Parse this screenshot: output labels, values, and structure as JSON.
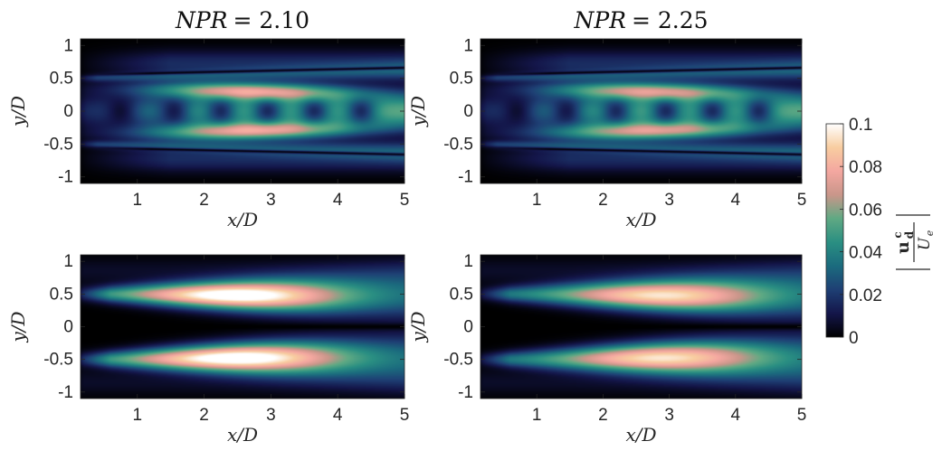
{
  "figure": {
    "colormap": [
      "#000000",
      "#14164a",
      "#1e3f74",
      "#1b6b7e",
      "#2a8f82",
      "#5fa983",
      "#c9968a",
      "#f4a7a0",
      "#f8cda0",
      "#ffffff"
    ]
  },
  "colorbar": {
    "min": 0,
    "max": 0.1,
    "ticks": [
      "0.1",
      "0.08",
      "0.06",
      "0.04",
      "0.02",
      "0"
    ],
    "label": "|u_d^c / U_e|"
  },
  "chart_data": [
    {
      "type": "heatmap",
      "title": "NPR = 2.10",
      "title_prefix": "NPR",
      "title_value": "= 2.10",
      "xlabel": "x/D",
      "ylabel": "y/D",
      "xlim": [
        0.15,
        5
      ],
      "ylim": [
        -1.1,
        1.1
      ],
      "xticks": [
        "1",
        "2",
        "3",
        "4",
        "5"
      ],
      "yticks": [
        "1",
        "0.5",
        "0",
        "-0.5",
        "-1"
      ],
      "field": {
        "kind": "shock-cell",
        "peak": 0.07,
        "cells_x": [
          0.75,
          1.55,
          2.25,
          2.95,
          3.65,
          4.35
        ]
      }
    },
    {
      "type": "heatmap",
      "title": "NPR = 2.25",
      "title_prefix": "NPR",
      "title_value": "= 2.25",
      "xlabel": "x/D",
      "ylabel": "y/D",
      "xlim": [
        0.15,
        5
      ],
      "ylim": [
        -1.1,
        1.1
      ],
      "xticks": [
        "1",
        "2",
        "3",
        "4",
        "5"
      ],
      "yticks": [
        "1",
        "0.5",
        "0",
        "-0.5",
        "-1"
      ],
      "field": {
        "kind": "shock-cell",
        "peak": 0.065,
        "cells_x": [
          0.7,
          1.45,
          2.2,
          2.95,
          3.65,
          4.35
        ]
      }
    },
    {
      "type": "heatmap",
      "title": "",
      "xlabel": "x/D",
      "ylabel": "y/D",
      "xlim": [
        0.15,
        5
      ],
      "ylim": [
        -1.1,
        1.1
      ],
      "xticks": [
        "1",
        "2",
        "3",
        "4",
        "5"
      ],
      "yticks": [
        "1",
        "0.5",
        "0",
        "-0.5",
        "-1"
      ],
      "field": {
        "kind": "shear-layer",
        "peak": 0.08,
        "peak_x": 2.5
      }
    },
    {
      "type": "heatmap",
      "title": "",
      "xlabel": "x/D",
      "ylabel": "y/D",
      "xlim": [
        0.15,
        5
      ],
      "ylim": [
        -1.1,
        1.1
      ],
      "xticks": [
        "1",
        "2",
        "3",
        "4",
        "5"
      ],
      "yticks": [
        "1",
        "0.5",
        "0",
        "-0.5",
        "-1"
      ],
      "field": {
        "kind": "shear-layer",
        "peak": 0.065,
        "peak_x": 2.9
      }
    }
  ]
}
